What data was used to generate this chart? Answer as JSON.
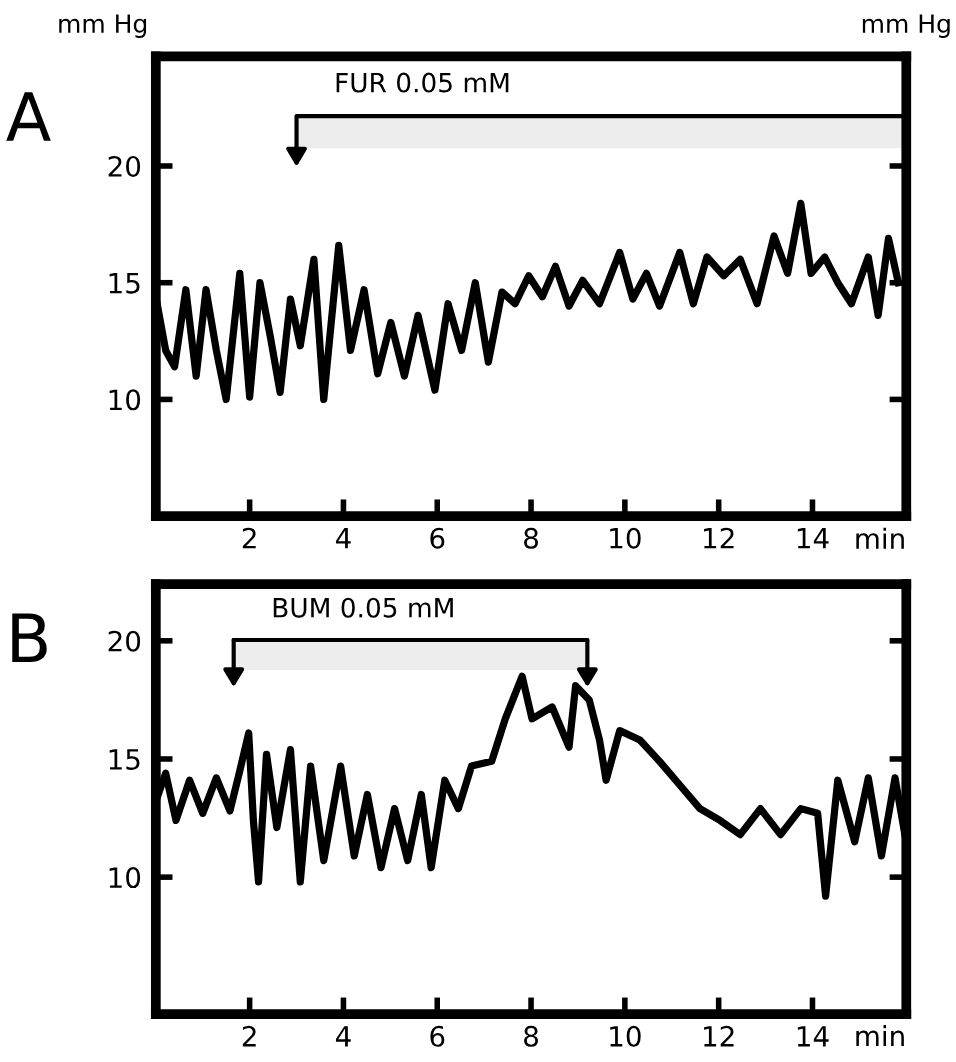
{
  "chart_data": [
    {
      "type": "line",
      "title": "A",
      "ylabel": "mm Hg",
      "y2label": "mm Hg",
      "xlabel": "min",
      "x": [
        0,
        0.21,
        0.4,
        0.64,
        0.86,
        1.07,
        1.29,
        1.5,
        1.79,
        2.0,
        2.22,
        2.44,
        2.65,
        2.87,
        3.08,
        3.37,
        3.58,
        3.9,
        4.15,
        4.44,
        4.73,
        5.01,
        5.3,
        5.59,
        5.95,
        6.23,
        6.52,
        6.81,
        7.09,
        7.38,
        7.66,
        7.95,
        8.24,
        8.52,
        8.81,
        9.1,
        9.46,
        9.89,
        10.17,
        10.46,
        10.74,
        11.17,
        11.46,
        11.75,
        12.11,
        12.46,
        12.82,
        13.18,
        13.47,
        13.75,
        13.97,
        14.26,
        14.54,
        14.83,
        15.19,
        15.4,
        15.62,
        15.83
      ],
      "series": [
        {
          "color": "#000000",
          "values": [
            14.4,
            12.1,
            11.4,
            14.7,
            11.0,
            14.7,
            12.1,
            10.0,
            15.4,
            10.1,
            15.0,
            12.7,
            10.3,
            14.3,
            12.3,
            16.0,
            10.0,
            16.6,
            12.1,
            14.7,
            11.1,
            13.3,
            11.0,
            13.6,
            10.4,
            14.1,
            12.1,
            15.0,
            11.6,
            14.6,
            14.1,
            15.3,
            14.4,
            15.7,
            14.0,
            15.1,
            14.1,
            16.3,
            14.3,
            15.4,
            14.0,
            16.3,
            14.1,
            16.1,
            15.3,
            16.0,
            14.1,
            17.0,
            15.4,
            18.4,
            15.4,
            16.1,
            15.0,
            14.1,
            16.1,
            13.6,
            16.9,
            15.0
          ]
        }
      ],
      "xlim": [
        0,
        16
      ],
      "xticks": [
        2,
        4,
        6,
        8,
        10,
        12,
        14
      ],
      "ylim": [
        5,
        24.7
      ],
      "yticks": [
        10,
        15,
        20
      ],
      "bands": [
        {
          "axis": "x",
          "from": 3.0,
          "to": 16,
          "label": "FUR 0.05 mM",
          "color": "#000000"
        }
      ],
      "grid": false,
      "legend": false,
      "line_style": "solid",
      "marker": "none"
    },
    {
      "type": "line",
      "title": "B",
      "xlabel": "min",
      "x": [
        0,
        0.21,
        0.43,
        0.72,
        1.0,
        1.29,
        1.58,
        1.79,
        1.98,
        2.08,
        2.19,
        2.36,
        2.58,
        2.87,
        3.08,
        3.3,
        3.58,
        3.94,
        4.23,
        4.51,
        4.8,
        5.09,
        5.37,
        5.66,
        5.87,
        6.16,
        6.45,
        6.73,
        7.16,
        7.45,
        7.81,
        8.02,
        8.45,
        8.81,
        8.95,
        9.24,
        9.46,
        9.6,
        9.89,
        10.32,
        10.74,
        11.17,
        11.6,
        12.03,
        12.46,
        12.89,
        13.32,
        13.75,
        14.11,
        14.28,
        14.54,
        14.9,
        15.19,
        15.47,
        15.76,
        15.97
      ],
      "series": [
        {
          "color": "#000000",
          "values": [
            13.2,
            14.4,
            12.4,
            14.1,
            12.7,
            14.2,
            12.8,
            14.5,
            16.1,
            12.4,
            9.8,
            15.2,
            12.1,
            15.4,
            9.8,
            14.7,
            10.7,
            14.7,
            10.9,
            13.5,
            10.4,
            12.9,
            10.7,
            13.5,
            10.4,
            14.1,
            12.9,
            14.7,
            14.9,
            16.7,
            18.5,
            16.7,
            17.2,
            15.5,
            18.1,
            17.5,
            15.8,
            14.1,
            16.2,
            15.8,
            14.9,
            13.9,
            12.9,
            12.4,
            11.8,
            12.9,
            11.8,
            12.9,
            12.7,
            9.2,
            14.1,
            11.5,
            14.2,
            10.9,
            14.2,
            11.8
          ]
        }
      ],
      "xlim": [
        0,
        16
      ],
      "xticks": [
        2,
        4,
        6,
        8,
        10,
        12,
        14
      ],
      "ylim": [
        4.2,
        22.4
      ],
      "yticks": [
        10,
        15,
        20
      ],
      "bands": [
        {
          "axis": "x",
          "from": 1.66,
          "to": 9.2,
          "label": "BUM 0.05 mM",
          "color": "#000000"
        }
      ],
      "grid": false,
      "legend": false,
      "line_style": "solid",
      "marker": "none"
    }
  ]
}
